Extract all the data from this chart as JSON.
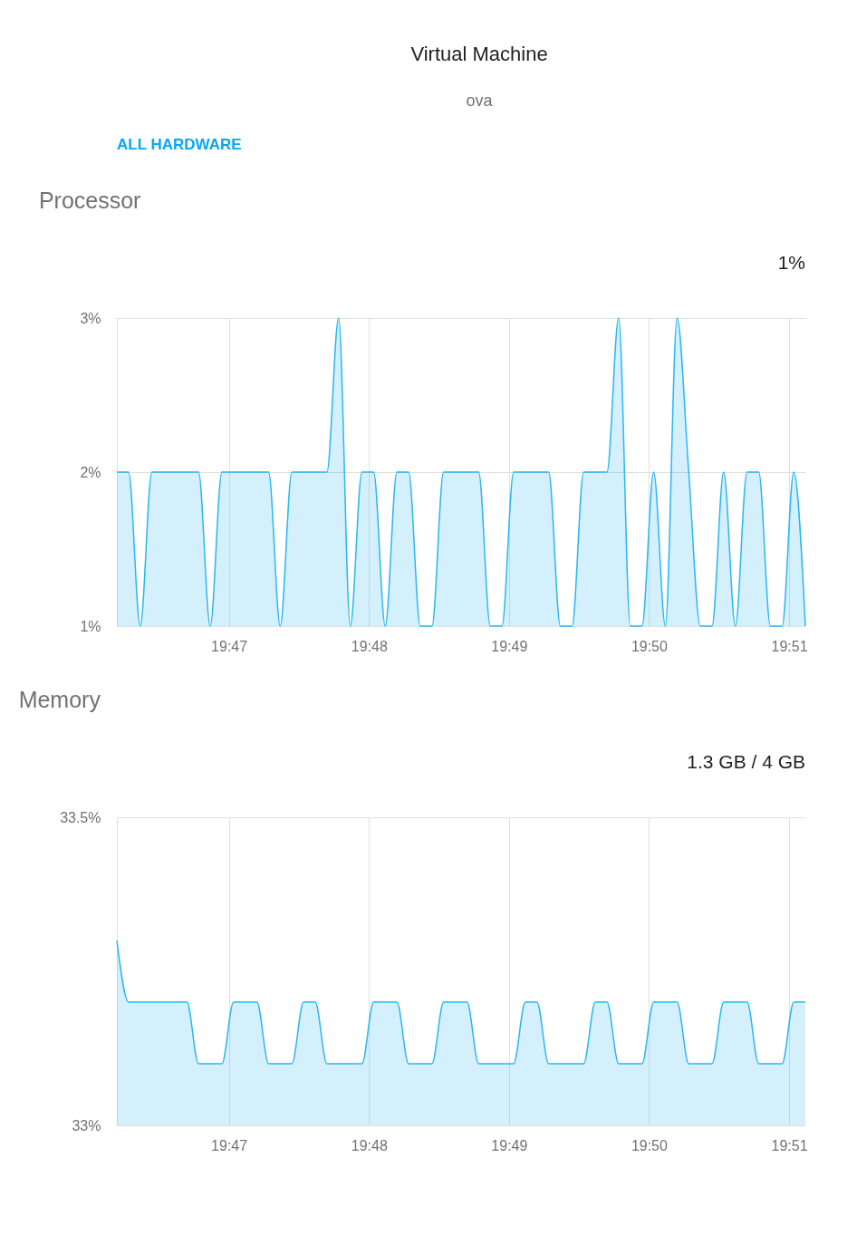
{
  "chart_data": [
    {
      "type": "other",
      "title": "Virtual Machine",
      "subtitle": "ova",
      "annotations": [
        "ALL HARDWARE"
      ]
    },
    {
      "type": "area",
      "title": "Processor",
      "annotations": [
        "1%"
      ],
      "x": [
        19.77,
        19.77139,
        19.77278,
        19.77417,
        19.77556,
        19.77694,
        19.77833,
        19.77972,
        19.78111,
        19.7825,
        19.78389,
        19.78528,
        19.78667,
        19.78806,
        19.78944,
        19.79083,
        19.79222,
        19.79361,
        19.795,
        19.79639,
        19.79778,
        19.79917,
        19.80056,
        19.80194,
        19.80333,
        19.80472,
        19.80611,
        19.8075,
        19.80889,
        19.81028,
        19.81167,
        19.81306,
        19.81444,
        19.81583,
        19.81722,
        19.81861,
        19.82,
        19.82139,
        19.82278,
        19.82417,
        19.82556,
        19.82694,
        19.82833,
        19.82972,
        19.83111,
        19.8325,
        19.83389,
        19.83528,
        19.83667,
        19.83806,
        19.83944,
        19.84083,
        19.84222,
        19.84361,
        19.845,
        19.84639,
        19.84778,
        19.84917,
        19.85056,
        19.85194
      ],
      "series": [
        {
          "color": "#29b6f6",
          "values": [
            2,
            2,
            1,
            2,
            2,
            2,
            2,
            2,
            1,
            2,
            2,
            2,
            2,
            2,
            1,
            2,
            2,
            2,
            2,
            3,
            1,
            2,
            2,
            1,
            2,
            2,
            1,
            1,
            2,
            2,
            2,
            2,
            1,
            1,
            2,
            2,
            2,
            2,
            1,
            1,
            2,
            2,
            2,
            3,
            1,
            1,
            2,
            1,
            3,
            2,
            1,
            1,
            2,
            1,
            2,
            2,
            1,
            1,
            2,
            1
          ]
        }
      ],
      "xlim": [
        19.77,
        19.85194
      ],
      "xticks": [
        {
          "value": 19.78333,
          "label": "19:47"
        },
        {
          "value": 19.8,
          "label": "19:48"
        },
        {
          "value": 19.81667,
          "label": "19:49"
        },
        {
          "value": 19.83333,
          "label": "19:50"
        },
        {
          "value": 19.85,
          "label": "19:51"
        }
      ],
      "ylim": [
        1,
        3
      ],
      "yticks": [
        {
          "value": 1,
          "label": "1%"
        },
        {
          "value": 2,
          "label": "2%"
        },
        {
          "value": 3,
          "label": "3%"
        }
      ],
      "grid": true
    },
    {
      "type": "area",
      "title": "Memory",
      "annotations": [
        "1.3 GB / 4 GB"
      ],
      "x": [
        19.77,
        19.77139,
        19.77278,
        19.77417,
        19.77556,
        19.77694,
        19.77833,
        19.77972,
        19.78111,
        19.7825,
        19.78389,
        19.78528,
        19.78667,
        19.78806,
        19.78944,
        19.79083,
        19.79222,
        19.79361,
        19.795,
        19.79639,
        19.79778,
        19.79917,
        19.80056,
        19.80194,
        19.80333,
        19.80472,
        19.80611,
        19.8075,
        19.80889,
        19.81028,
        19.81167,
        19.81306,
        19.81444,
        19.81583,
        19.81722,
        19.81861,
        19.82,
        19.82139,
        19.82278,
        19.82417,
        19.82556,
        19.82694,
        19.82833,
        19.82972,
        19.83111,
        19.8325,
        19.83389,
        19.83528,
        19.83667,
        19.83806,
        19.83944,
        19.84083,
        19.84222,
        19.84361,
        19.845,
        19.84639,
        19.84778,
        19.84917,
        19.85056,
        19.85194
      ],
      "series": [
        {
          "color": "#29b6f6",
          "values": [
            33.3,
            33.2,
            33.2,
            33.2,
            33.2,
            33.2,
            33.2,
            33.1,
            33.1,
            33.1,
            33.2,
            33.2,
            33.2,
            33.1,
            33.1,
            33.1,
            33.2,
            33.2,
            33.1,
            33.1,
            33.1,
            33.1,
            33.2,
            33.2,
            33.2,
            33.1,
            33.1,
            33.1,
            33.2,
            33.2,
            33.2,
            33.1,
            33.1,
            33.1,
            33.1,
            33.2,
            33.2,
            33.1,
            33.1,
            33.1,
            33.1,
            33.2,
            33.2,
            33.1,
            33.1,
            33.1,
            33.2,
            33.2,
            33.2,
            33.1,
            33.1,
            33.1,
            33.2,
            33.2,
            33.2,
            33.1,
            33.1,
            33.1,
            33.2,
            33.2
          ]
        }
      ],
      "xlim": [
        19.77,
        19.85194
      ],
      "xticks": [
        {
          "value": 19.78333,
          "label": "19:47"
        },
        {
          "value": 19.8,
          "label": "19:48"
        },
        {
          "value": 19.81667,
          "label": "19:49"
        },
        {
          "value": 19.83333,
          "label": "19:50"
        },
        {
          "value": 19.85,
          "label": "19:51"
        }
      ],
      "ylim": [
        33,
        33.5
      ],
      "yticks": [
        {
          "value": 33,
          "label": "33%"
        },
        {
          "value": 33.5,
          "label": "33.5%"
        }
      ],
      "grid": true
    }
  ]
}
